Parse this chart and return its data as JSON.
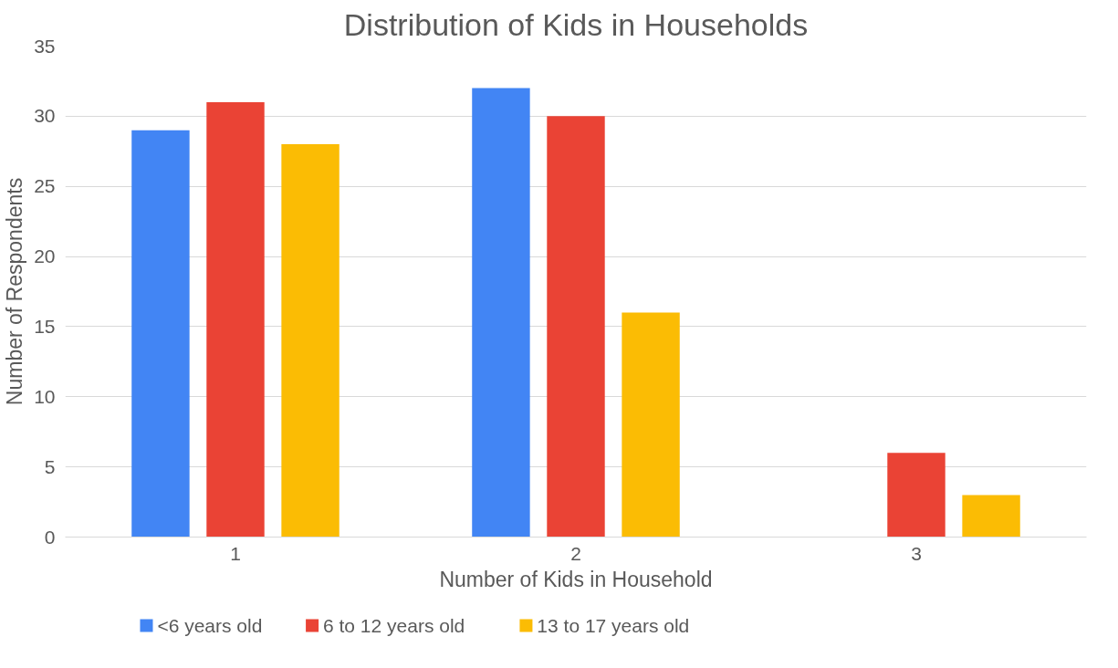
{
  "chart_data": {
    "type": "bar",
    "title": "Distribution of Kids in Households",
    "xlabel": "Number of Kids in Household",
    "ylabel": "Number of Respondents",
    "categories": [
      "1",
      "2",
      "3"
    ],
    "series": [
      {
        "name": "<6 years old",
        "color": "#4285f4",
        "values": [
          29,
          32,
          null
        ]
      },
      {
        "name": "6 to 12 years old",
        "color": "#ea4335",
        "values": [
          31,
          30,
          6
        ]
      },
      {
        "name": "13 to 17 years old",
        "color": "#fbbc04",
        "values": [
          28,
          16,
          3
        ]
      }
    ],
    "ylim": [
      0,
      35
    ],
    "yticks": [
      0,
      5,
      10,
      15,
      20,
      25,
      30,
      35
    ],
    "grid": "y",
    "legend": "bottom"
  }
}
